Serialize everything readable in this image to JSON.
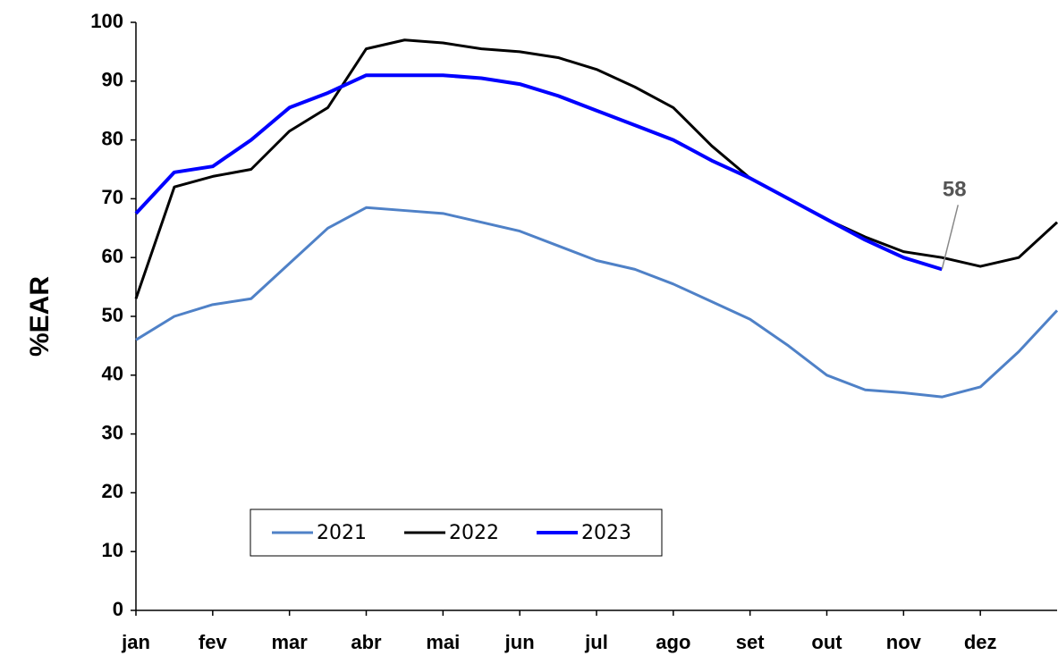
{
  "chart_data": {
    "type": "line",
    "y_label": "%EAR",
    "categories": [
      "jan",
      null,
      "fev",
      null,
      "mar",
      null,
      "abr",
      null,
      "mai",
      null,
      "jun",
      null,
      "jul",
      null,
      "ago",
      null,
      "set",
      null,
      "out",
      null,
      "nov",
      null,
      "dez",
      null,
      null
    ],
    "series": [
      {
        "name": "2021",
        "color": "#4f81c7",
        "values": [
          46,
          50,
          52,
          53,
          59,
          65,
          68.5,
          68,
          67.5,
          66,
          64.5,
          62,
          59.5,
          58,
          55.5,
          52.5,
          49.5,
          45,
          40,
          37.5,
          37,
          36.3,
          38,
          44,
          51
        ]
      },
      {
        "name": "2022",
        "color": "#000000",
        "values": [
          53,
          72,
          73.8,
          75,
          81.5,
          85.5,
          95.5,
          97,
          96.5,
          95.5,
          95,
          94,
          92,
          89,
          85.5,
          79,
          73.5,
          70,
          66.5,
          63.5,
          61,
          60,
          58.5,
          60,
          66
        ]
      },
      {
        "name": "2023",
        "color": "#0000ff",
        "values": [
          67.5,
          74.5,
          75.5,
          80,
          85.5,
          88,
          91,
          91,
          91,
          90.5,
          89.5,
          87.5,
          85,
          82.5,
          80,
          76.5,
          73.5,
          70,
          66.5,
          63,
          60,
          58,
          null,
          null,
          null
        ]
      }
    ],
    "annotation": "58",
    "ylim": [
      0,
      100
    ],
    "yticks": [
      0,
      10,
      20,
      30,
      40,
      50,
      60,
      70,
      80,
      90,
      100
    ],
    "grid": false,
    "legend": "lower left"
  }
}
